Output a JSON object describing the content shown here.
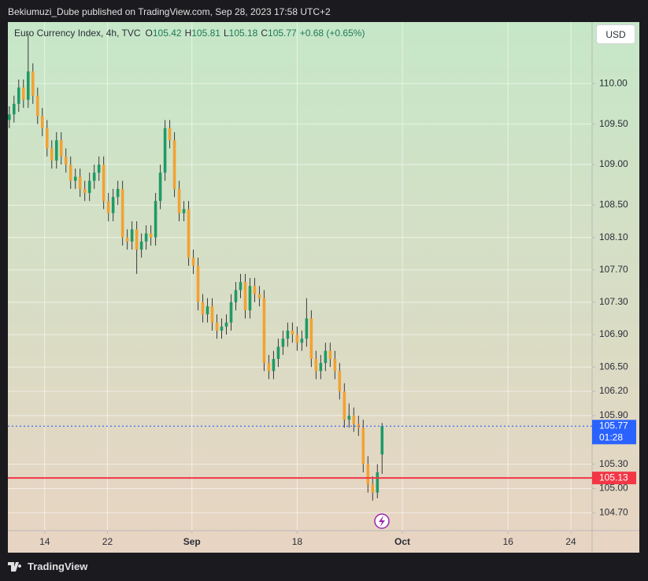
{
  "header": {
    "title": "Bekiumuzi_Dube published on TradingView.com, Sep 28, 2023 17:58 UTC+2"
  },
  "footer": {
    "brand": "TradingView"
  },
  "chart_data": {
    "type": "candlestick",
    "title": "Euro Currency Index, 4h, TVC",
    "ohlc_labels": [
      "O",
      "H",
      "L",
      "C"
    ],
    "change_label": "+0.68 (+0.65%)",
    "currency": "USD",
    "up_color": "#1f9a66",
    "down_color": "#f2a232",
    "wick_color": "#3a3a3a",
    "grid": true,
    "x": [
      0,
      1,
      2,
      3,
      4,
      5,
      6,
      7,
      8,
      9,
      10,
      11,
      12,
      13,
      14,
      15,
      16,
      17,
      18,
      19,
      20,
      21,
      22,
      23,
      24,
      25,
      26,
      27,
      28,
      29,
      30,
      31,
      32,
      33,
      34,
      35,
      36,
      37,
      38,
      39,
      40,
      41,
      42,
      43,
      44,
      45,
      46,
      47,
      48,
      49,
      50,
      51,
      52,
      53,
      54,
      55,
      56,
      57,
      58,
      59,
      60,
      61,
      62,
      63,
      64,
      65,
      66,
      67,
      68,
      69,
      70,
      71,
      72,
      73,
      74,
      75,
      76,
      77,
      78,
      79
    ],
    "open": [
      109.55,
      109.62,
      109.75,
      109.95,
      109.8,
      110.15,
      109.85,
      109.6,
      109.45,
      109.2,
      109.05,
      109.3,
      109.1,
      109.0,
      108.8,
      108.85,
      108.7,
      108.65,
      108.8,
      108.9,
      109.0,
      108.55,
      108.4,
      108.6,
      108.7,
      108.1,
      108.05,
      108.2,
      107.95,
      108.05,
      108.15,
      108.1,
      108.55,
      108.9,
      109.45,
      109.3,
      108.7,
      108.4,
      108.45,
      107.85,
      107.75,
      107.3,
      107.15,
      107.25,
      107.05,
      106.95,
      107.0,
      107.05,
      107.3,
      107.45,
      107.55,
      107.2,
      107.5,
      107.4,
      107.35,
      106.55,
      106.45,
      106.6,
      106.75,
      106.85,
      106.95,
      106.9,
      106.8,
      106.85,
      107.1,
      106.6,
      106.45,
      106.55,
      106.7,
      106.6,
      106.45,
      106.2,
      105.85,
      105.9,
      105.8,
      105.75,
      105.3,
      105.05,
      104.95,
      105.42
    ],
    "high": [
      109.72,
      109.85,
      110.05,
      110.05,
      110.62,
      110.25,
      109.95,
      109.7,
      109.55,
      109.3,
      109.4,
      109.4,
      109.2,
      109.1,
      108.95,
      108.95,
      108.8,
      108.9,
      109.0,
      109.1,
      109.1,
      108.65,
      108.7,
      108.8,
      108.8,
      108.2,
      108.3,
      108.3,
      108.15,
      108.25,
      108.25,
      108.65,
      109.0,
      109.55,
      109.55,
      109.4,
      108.8,
      108.55,
      108.55,
      107.95,
      107.85,
      107.4,
      107.35,
      107.35,
      107.15,
      107.1,
      107.15,
      107.4,
      107.55,
      107.65,
      107.65,
      107.6,
      107.6,
      107.5,
      107.45,
      106.65,
      106.7,
      106.85,
      106.95,
      107.05,
      107.05,
      107.0,
      106.95,
      107.35,
      107.2,
      106.7,
      106.65,
      106.8,
      106.8,
      106.7,
      106.55,
      106.3,
      106.05,
      106.0,
      105.9,
      105.85,
      105.4,
      105.15,
      105.3,
      105.81
    ],
    "low": [
      109.45,
      109.52,
      109.65,
      109.7,
      109.7,
      109.75,
      109.5,
      109.35,
      109.1,
      108.95,
      108.95,
      109.0,
      108.9,
      108.7,
      108.7,
      108.6,
      108.55,
      108.55,
      108.7,
      108.8,
      108.45,
      108.3,
      108.3,
      108.5,
      108.0,
      107.95,
      107.95,
      107.65,
      107.85,
      107.95,
      108.0,
      108.0,
      108.45,
      108.8,
      109.2,
      108.6,
      108.3,
      108.3,
      107.75,
      107.65,
      107.2,
      107.05,
      107.05,
      106.95,
      106.85,
      106.85,
      106.9,
      106.95,
      107.2,
      107.35,
      107.1,
      107.1,
      107.3,
      107.25,
      106.45,
      106.35,
      106.35,
      106.5,
      106.65,
      106.75,
      106.8,
      106.7,
      106.7,
      106.75,
      106.5,
      106.35,
      106.35,
      106.45,
      106.5,
      106.35,
      106.1,
      105.75,
      105.75,
      105.7,
      105.65,
      105.2,
      104.95,
      104.85,
      104.88,
      105.18
    ],
    "close": [
      109.62,
      109.75,
      109.95,
      109.8,
      110.15,
      109.85,
      109.6,
      109.45,
      109.2,
      109.05,
      109.3,
      109.1,
      109.0,
      108.8,
      108.85,
      108.7,
      108.65,
      108.8,
      108.9,
      109.0,
      108.55,
      108.4,
      108.6,
      108.7,
      108.1,
      108.05,
      108.2,
      107.95,
      108.05,
      108.15,
      108.1,
      108.55,
      108.9,
      109.45,
      109.3,
      108.7,
      108.4,
      108.45,
      107.85,
      107.75,
      107.3,
      107.15,
      107.25,
      107.05,
      106.95,
      107.0,
      107.05,
      107.3,
      107.45,
      107.55,
      107.2,
      107.5,
      107.4,
      107.35,
      106.55,
      106.45,
      106.6,
      106.75,
      106.85,
      106.95,
      106.9,
      106.8,
      106.85,
      107.1,
      106.6,
      106.45,
      106.55,
      106.7,
      106.6,
      106.45,
      106.2,
      105.85,
      105.9,
      105.8,
      105.75,
      105.3,
      105.05,
      104.95,
      105.2,
      105.77
    ],
    "xlim": [
      -0.3,
      123.5
    ],
    "xticks": [
      {
        "value": 7.5,
        "label": "14"
      },
      {
        "value": 20.8,
        "label": "22"
      },
      {
        "value": 38.7,
        "label": "Sep"
      },
      {
        "value": 61,
        "label": "18"
      },
      {
        "value": 83.3,
        "label": "Oct"
      },
      {
        "value": 105.7,
        "label": "16"
      },
      {
        "value": 119,
        "label": "24"
      }
    ],
    "ylim": [
      104.48,
      110.76
    ],
    "yticks": [
      {
        "value": 110,
        "label": "110.00"
      },
      {
        "value": 109.5,
        "label": "109.50"
      },
      {
        "value": 109,
        "label": "109.00"
      },
      {
        "value": 108.5,
        "label": "108.50"
      },
      {
        "value": 108.1,
        "label": "108.10"
      },
      {
        "value": 107.7,
        "label": "107.70"
      },
      {
        "value": 107.3,
        "label": "107.30"
      },
      {
        "value": 106.9,
        "label": "106.90"
      },
      {
        "value": 106.5,
        "label": "106.50"
      },
      {
        "value": 106.2,
        "label": "106.20"
      },
      {
        "value": 105.9,
        "label": "105.90"
      },
      {
        "value": 105.3,
        "label": "105.30"
      },
      {
        "value": 105,
        "label": "105.00"
      },
      {
        "value": 104.7,
        "label": "104.70"
      }
    ],
    "price_line": {
      "value": 105.77,
      "countdown": "01:28",
      "color": "#2962ff"
    },
    "level_line": {
      "value": 105.13,
      "color": "#f23645"
    }
  }
}
